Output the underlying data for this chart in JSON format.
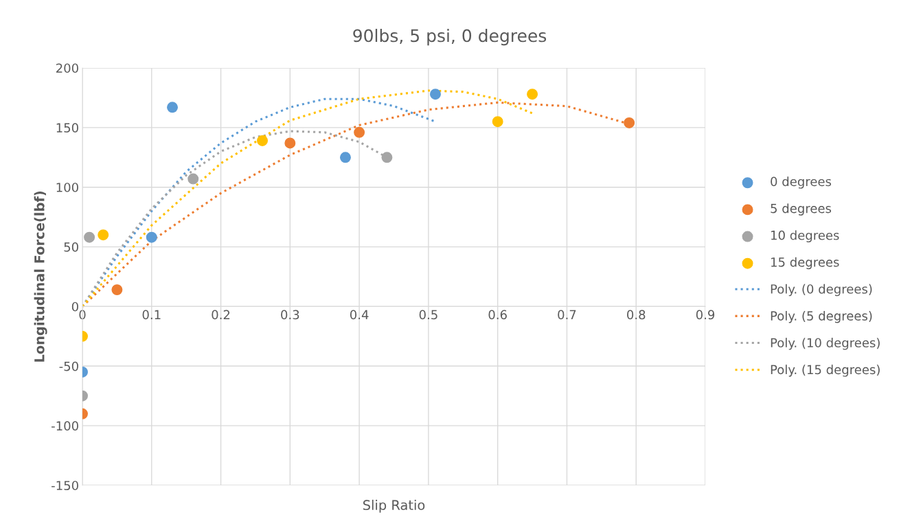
{
  "chart_data": {
    "type": "scatter",
    "title": "90lbs, 5 psi, 0 degrees",
    "xlabel": "Slip Ratio",
    "ylabel": "Longitudinal Force(lbf)",
    "xlim": [
      0,
      0.9
    ],
    "xticks": [
      0,
      0.1,
      0.2,
      0.3,
      0.4,
      0.5,
      0.6,
      0.7,
      0.8,
      0.9
    ],
    "ylim": [
      -150,
      200
    ],
    "yticks": [
      -150,
      -100,
      -50,
      0,
      50,
      100,
      150,
      200
    ],
    "grid": true,
    "legend": "right",
    "marker": "circle",
    "series": [
      {
        "name": "0 degrees",
        "color": "#5b9bd5",
        "x": [
          0,
          0.1,
          0.13,
          0.38,
          0.51
        ],
        "values": [
          -55,
          58,
          167,
          125,
          178
        ]
      },
      {
        "name": "5 degrees",
        "color": "#ed7d31",
        "x": [
          0,
          0.05,
          0.3,
          0.4,
          0.79
        ],
        "values": [
          -90,
          14,
          137,
          146,
          154
        ]
      },
      {
        "name": "10 degrees",
        "color": "#a5a5a5",
        "x": [
          0,
          0.01,
          0.16,
          0.44
        ],
        "values": [
          -75,
          58,
          107,
          125
        ]
      },
      {
        "name": "15 degrees",
        "color": "#ffc000",
        "x": [
          0,
          0.03,
          0.26,
          0.6,
          0.65
        ],
        "values": [
          -25,
          60,
          139,
          155,
          178
        ]
      },
      {
        "name": "Poly. (0 degrees)",
        "type": "line",
        "marker": "none",
        "line_style": "dotted",
        "color": "#5b9bd5",
        "x": [
          0,
          0.05,
          0.1,
          0.15,
          0.2,
          0.25,
          0.3,
          0.35,
          0.4,
          0.45,
          0.51
        ],
        "values": [
          0,
          42,
          80,
          113,
          137,
          155,
          167,
          174,
          174,
          168,
          155
        ]
      },
      {
        "name": "Poly. (5 degrees)",
        "type": "line",
        "marker": "none",
        "line_style": "dotted",
        "color": "#ed7d31",
        "x": [
          0,
          0.1,
          0.2,
          0.3,
          0.4,
          0.5,
          0.6,
          0.7,
          0.79
        ],
        "values": [
          0,
          55,
          95,
          127,
          152,
          165,
          171,
          168,
          153
        ]
      },
      {
        "name": "Poly. (10 degrees)",
        "type": "line",
        "marker": "none",
        "line_style": "dotted",
        "color": "#a5a5a5",
        "x": [
          0,
          0.05,
          0.1,
          0.15,
          0.2,
          0.25,
          0.3,
          0.35,
          0.4,
          0.44
        ],
        "values": [
          0,
          45,
          82,
          110,
          130,
          142,
          147,
          146,
          138,
          125
        ]
      },
      {
        "name": "Poly. (15 degrees)",
        "type": "line",
        "marker": "none",
        "line_style": "dotted",
        "color": "#ffc000",
        "x": [
          0,
          0.1,
          0.2,
          0.3,
          0.4,
          0.5,
          0.55,
          0.6,
          0.65
        ],
        "values": [
          0,
          68,
          120,
          156,
          174,
          181,
          180,
          174,
          162
        ]
      }
    ]
  }
}
